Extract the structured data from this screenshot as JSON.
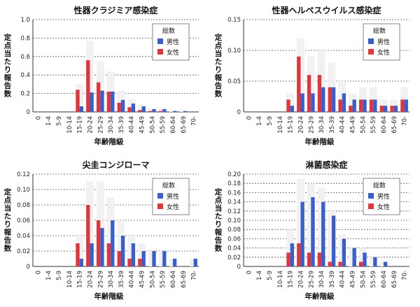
{
  "chart_data": [
    {
      "type": "bar",
      "title": "性器クラジミア感染症",
      "xlabel": "年齢階級",
      "ylabel": "定点当たり報告数",
      "categories": [
        "0",
        "1-4",
        "5-9",
        "10-14",
        "15-19",
        "20-24",
        "25-29",
        "30-34",
        "35-39",
        "40-44",
        "45-49",
        "50-54",
        "55-59",
        "60-64",
        "65-69",
        "70-"
      ],
      "ylim": [
        0,
        1.0
      ],
      "yticks": [
        "0",
        "0.2",
        "0.4",
        "0.6",
        "0.8",
        "1.0"
      ],
      "grid": true,
      "legend": {
        "title": "総数",
        "position": "top-right"
      },
      "series": [
        {
          "name": "男性",
          "color": "#3a5fcd",
          "values": [
            0,
            0,
            0,
            0,
            0.06,
            0.21,
            0.23,
            0.22,
            0.13,
            0.09,
            0.06,
            0.03,
            0.03,
            0.01,
            0.01,
            0
          ]
        },
        {
          "name": "女性",
          "color": "#e0353b",
          "values": [
            0,
            0,
            0,
            0,
            0.24,
            0.56,
            0.32,
            0.22,
            0.1,
            0.05,
            0.02,
            0.01,
            0.01,
            0,
            0,
            0
          ]
        }
      ]
    },
    {
      "type": "bar",
      "title": "性器ヘルペスウイルス感染症",
      "xlabel": "年齢階級",
      "ylabel": "定点当たり報告数",
      "categories": [
        "0",
        "1-4",
        "5-9",
        "10-14",
        "15-19",
        "20-24",
        "25-29",
        "30-34",
        "35-39",
        "40-44",
        "45-49",
        "50-54",
        "55-59",
        "60-64",
        "65-69",
        "70-"
      ],
      "ylim": [
        0,
        0.15
      ],
      "yticks": [
        "0",
        "0.05",
        "0.10",
        "0.15"
      ],
      "grid": true,
      "legend": {
        "title": "総数",
        "position": "top-right"
      },
      "series": [
        {
          "name": "男性",
          "color": "#3a5fcd",
          "values": [
            0,
            0,
            0,
            0,
            0.01,
            0.03,
            0.03,
            0.04,
            0.04,
            0.03,
            0.02,
            0.02,
            0.02,
            0.01,
            0.01,
            0.02
          ]
        },
        {
          "name": "女性",
          "color": "#e0353b",
          "values": [
            0,
            0,
            0,
            0,
            0.02,
            0.09,
            0.06,
            0.06,
            0.04,
            0.02,
            0.01,
            0.02,
            0.02,
            0.01,
            0.01,
            0.02
          ]
        }
      ]
    },
    {
      "type": "bar",
      "title": "尖圭コンジローマ",
      "xlabel": "年齢階級",
      "ylabel": "定点当たり報告数",
      "categories": [
        "0",
        "1-4",
        "5-9",
        "10-14",
        "15-19",
        "20-24",
        "25-29",
        "30-34",
        "35-39",
        "40-44",
        "45-49",
        "50-54",
        "55-59",
        "60-64",
        "65-69",
        "70-"
      ],
      "ylim": [
        0,
        0.12
      ],
      "yticks": [
        "0",
        "0.02",
        "0.04",
        "0.06",
        "0.08",
        "0.10",
        "0.12"
      ],
      "grid": true,
      "legend": {
        "title": "総数",
        "position": "top-right"
      },
      "series": [
        {
          "name": "男性",
          "color": "#3a5fcd",
          "values": [
            0,
            0,
            0,
            0,
            0.01,
            0.03,
            0.05,
            0.06,
            0.04,
            0.03,
            0.02,
            0.02,
            0.02,
            0.01,
            0,
            0.01
          ]
        },
        {
          "name": "女性",
          "color": "#e0353b",
          "values": [
            0,
            0,
            0,
            0,
            0.03,
            0.08,
            0.06,
            0.03,
            0.02,
            0.01,
            0.01,
            0,
            0,
            0,
            0,
            0
          ]
        }
      ]
    },
    {
      "type": "bar",
      "title": "淋菌感染症",
      "xlabel": "年齢階級",
      "ylabel": "定点当たり報告数",
      "categories": [
        "0",
        "1-4",
        "5-9",
        "10-14",
        "15-19",
        "20-24",
        "25-29",
        "30-34",
        "35-39",
        "40-44",
        "45-49",
        "50-54",
        "55-59",
        "60-64",
        "65-69",
        "70-"
      ],
      "ylim": [
        0,
        0.2
      ],
      "yticks": [
        "0",
        "0.02",
        "0.04",
        "0.06",
        "0.08",
        "0.10",
        "0.12",
        "0.14",
        "0.16",
        "0.18",
        "0.20"
      ],
      "grid": true,
      "legend": {
        "title": "総数",
        "position": "top-right"
      },
      "series": [
        {
          "name": "男性",
          "color": "#3a5fcd",
          "values": [
            0,
            0,
            0,
            0,
            0.05,
            0.14,
            0.15,
            0.14,
            0.11,
            0.06,
            0.04,
            0.03,
            0.02,
            0.01,
            0,
            0
          ]
        },
        {
          "name": "女性",
          "color": "#e0353b",
          "values": [
            0,
            0,
            0,
            0,
            0.03,
            0.05,
            0.03,
            0.03,
            0.01,
            0.01,
            0,
            0.01,
            0,
            0,
            0,
            0
          ]
        }
      ]
    }
  ]
}
